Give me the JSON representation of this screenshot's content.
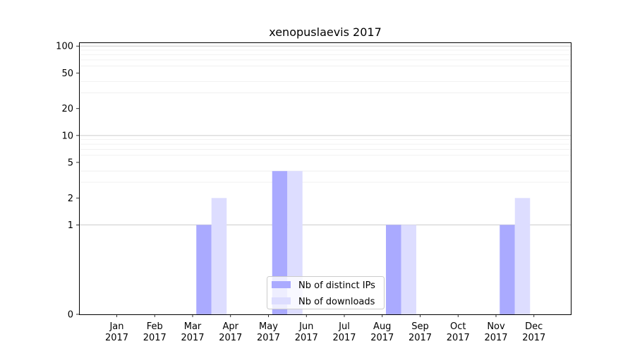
{
  "chart_data": {
    "type": "bar",
    "title": "xenopuslaevis 2017",
    "xlabel": "",
    "ylabel": "",
    "categories": [
      [
        "Jan",
        "2017"
      ],
      [
        "Feb",
        "2017"
      ],
      [
        "Mar",
        "2017"
      ],
      [
        "Apr",
        "2017"
      ],
      [
        "May",
        "2017"
      ],
      [
        "Jun",
        "2017"
      ],
      [
        "Jul",
        "2017"
      ],
      [
        "Aug",
        "2017"
      ],
      [
        "Sep",
        "2017"
      ],
      [
        "Oct",
        "2017"
      ],
      [
        "Nov",
        "2017"
      ],
      [
        "Dec",
        "2017"
      ]
    ],
    "series": [
      {
        "name": "Nb of distinct IPs",
        "color": "#aaaaff",
        "values": [
          0,
          0,
          0,
          1,
          0,
          4,
          0,
          0,
          1,
          0,
          0,
          1
        ]
      },
      {
        "name": "Nb of downloads",
        "color": "#ddddff",
        "values": [
          0,
          0,
          0,
          2,
          0,
          4,
          0,
          0,
          1,
          0,
          0,
          2
        ]
      }
    ],
    "y_scale": "symlog",
    "ylim": [
      0,
      110
    ],
    "yticks": [
      0,
      1,
      2,
      5,
      10,
      20,
      50,
      100
    ],
    "grid": true,
    "legend_position": "lower-center"
  }
}
